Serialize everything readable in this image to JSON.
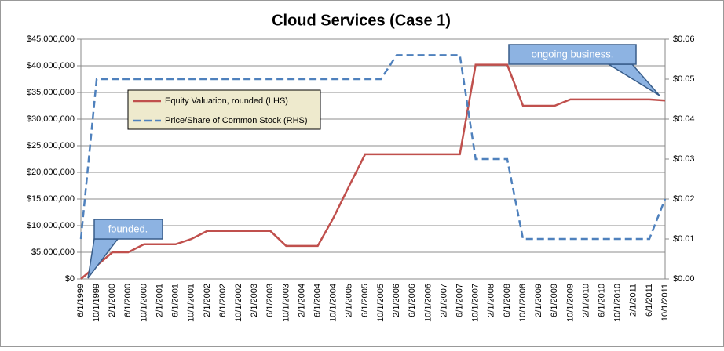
{
  "chart_data": {
    "type": "line",
    "title": "Cloud Services (Case 1)",
    "categories": [
      "6/1/1999",
      "10/1/1999",
      "2/1/2000",
      "6/1/2000",
      "10/1/2000",
      "2/1/2001",
      "6/1/2001",
      "10/1/2001",
      "2/1/2002",
      "6/1/2002",
      "10/1/2002",
      "2/1/2003",
      "6/1/2003",
      "10/1/2003",
      "2/1/2004",
      "6/1/2004",
      "10/1/2004",
      "2/1/2005",
      "6/1/2005",
      "10/1/2005",
      "2/1/2006",
      "6/1/2006",
      "10/1/2006",
      "2/1/2007",
      "6/1/2007",
      "10/1/2007",
      "2/1/2008",
      "6/1/2008",
      "10/1/2008",
      "2/1/2009",
      "6/1/2009",
      "10/1/2009",
      "2/1/2010",
      "6/1/2010",
      "10/1/2010",
      "2/1/2011",
      "6/1/2011",
      "10/1/2011"
    ],
    "series": [
      {
        "name": "Equity Valuation,  rounded (LHS)",
        "color": "#c0504d",
        "values": [
          0,
          2500000,
          5000000,
          5000000,
          6500000,
          6500000,
          6500000,
          7500000,
          9000000,
          9000000,
          9000000,
          9000000,
          9000000,
          6200000,
          6200000,
          6200000,
          11500000,
          17500000,
          23400000,
          23400000,
          23400000,
          23400000,
          23400000,
          23400000,
          23400000,
          40200000,
          40200000,
          40200000,
          32500000,
          32500000,
          32500000,
          33700000,
          33700000,
          33700000,
          33700000,
          33700000,
          33700000,
          33500000
        ]
      },
      {
        "name": "Price/Share of Common Stock (RHS)",
        "color": "#4f81bd",
        "axis": "y2",
        "dashed": true,
        "values": [
          0.01,
          0.05,
          0.05,
          0.05,
          0.05,
          0.05,
          0.05,
          0.05,
          0.05,
          0.05,
          0.05,
          0.05,
          0.05,
          0.05,
          0.05,
          0.05,
          0.05,
          0.05,
          0.05,
          0.05,
          0.056,
          0.056,
          0.056,
          0.056,
          0.056,
          0.03,
          0.03,
          0.03,
          0.01,
          0.01,
          0.01,
          0.01,
          0.01,
          0.01,
          0.01,
          0.01,
          0.01,
          0.02
        ]
      }
    ],
    "ylim": [
      0,
      45000000
    ],
    "yticks": [
      {
        "value": 0,
        "label": "$0"
      },
      {
        "value": 5000000,
        "label": "$5,000,000"
      },
      {
        "value": 10000000,
        "label": "$10,000,000"
      },
      {
        "value": 15000000,
        "label": "$15,000,000"
      },
      {
        "value": 20000000,
        "label": "$20,000,000"
      },
      {
        "value": 25000000,
        "label": "$25,000,000"
      },
      {
        "value": 30000000,
        "label": "$30,000,000"
      },
      {
        "value": 35000000,
        "label": "$35,000,000"
      },
      {
        "value": 40000000,
        "label": "$40,000,000"
      },
      {
        "value": 45000000,
        "label": "$45,000,000"
      }
    ],
    "y2lim": [
      0,
      0.06
    ],
    "y2ticks": [
      {
        "value": 0,
        "label": "$0.00"
      },
      {
        "value": 0.01,
        "label": "$0.01"
      },
      {
        "value": 0.02,
        "label": "$0.02"
      },
      {
        "value": 0.03,
        "label": "$0.03"
      },
      {
        "value": 0.04,
        "label": "$0.04"
      },
      {
        "value": 0.05,
        "label": "$0.05"
      },
      {
        "value": 0.06,
        "label": "$0.06"
      }
    ],
    "grid": true,
    "annotations": [
      "founded.",
      "ongoing business."
    ]
  }
}
